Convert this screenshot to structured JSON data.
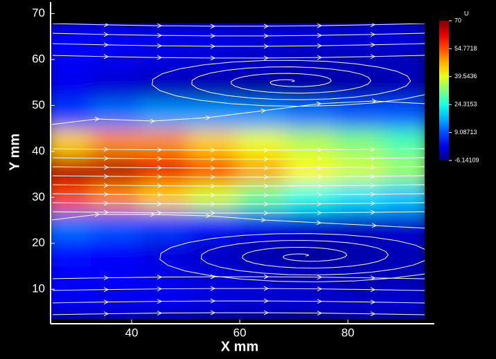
{
  "chart_data": {
    "type": "contour",
    "xlabel": "X mm",
    "ylabel": "Y mm",
    "xlim": [
      25,
      96
    ],
    "ylim": [
      2.5,
      72.5
    ],
    "xticks": [
      40,
      60,
      80
    ],
    "yticks": [
      10,
      20,
      30,
      40,
      50,
      60,
      70
    ],
    "colorbar": {
      "label": "U",
      "clim": [
        -6.14109,
        70
      ],
      "ticks": [
        70,
        54.7718,
        39.5436,
        24.3153,
        9.08713,
        -6.14109
      ]
    },
    "field": {
      "x": [
        28,
        37,
        46,
        55,
        64,
        73,
        82,
        91
      ],
      "y": [
        6,
        12,
        18,
        24,
        30,
        36,
        42,
        48,
        54,
        60,
        66
      ],
      "u": [
        [
          2,
          2,
          2,
          1,
          0,
          0,
          0,
          0
        ],
        [
          3,
          3,
          2,
          1,
          0,
          -1,
          -2,
          -2
        ],
        [
          4,
          3,
          1,
          -1,
          -3,
          -4,
          -3,
          -2
        ],
        [
          12,
          10,
          8,
          5,
          2,
          0,
          -1,
          0
        ],
        [
          55,
          50,
          45,
          38,
          30,
          24,
          20,
          18
        ],
        [
          66,
          66,
          62,
          55,
          48,
          42,
          38,
          34
        ],
        [
          45,
          50,
          50,
          45,
          40,
          36,
          32,
          28
        ],
        [
          8,
          12,
          15,
          15,
          14,
          12,
          10,
          10
        ],
        [
          2,
          0,
          -2,
          -3,
          -4,
          -4,
          -3,
          -2
        ],
        [
          3,
          2,
          1,
          0,
          -1,
          -2,
          -2,
          -2
        ],
        [
          3,
          3,
          2,
          2,
          1,
          1,
          1,
          1
        ]
      ]
    }
  }
}
